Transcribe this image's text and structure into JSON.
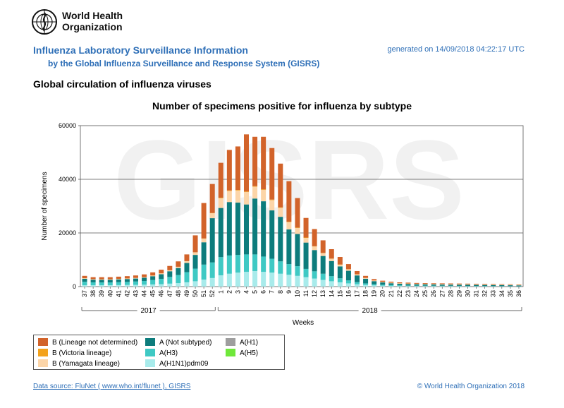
{
  "header": {
    "org_line1": "World Health",
    "org_line2": "Organization",
    "title": "Influenza Laboratory Surveillance Information",
    "subtitle": "by the Global Influenza Surveillance and Response System (GISRS)",
    "generated": "generated on 14/09/2018 04:22:17 UTC",
    "section": "Global circulation of influenza viruses"
  },
  "watermark": "GISRS",
  "footer": {
    "source": "Data source: FluNet ( www.who.int/flunet ), GISRS",
    "copyright": "© World Health Organization 2018"
  },
  "legend_items": [
    {
      "label": "B (Lineage not determined)",
      "color": "#d2632a"
    },
    {
      "label": "B (Victoria lineage)",
      "color": "#f3a21c"
    },
    {
      "label": "B (Yamagata lineage)",
      "color": "#fcd5a8"
    },
    {
      "label": "A (Not subtyped)",
      "color": "#0d7c7c"
    },
    {
      "label": "A(H3)",
      "color": "#3fc9c4"
    },
    {
      "label": "A(H1N1)pdm09",
      "color": "#a8ebeb"
    },
    {
      "label": "A(H1)",
      "color": "#9e9e9e"
    },
    {
      "label": "A(H5)",
      "color": "#6fe83a"
    }
  ],
  "chart_data": {
    "type": "bar",
    "stacked": true,
    "title": "Number of specimens positive for influenza by subtype",
    "xlabel": "Weeks",
    "ylabel": "Number of specimens",
    "ylim": [
      0,
      60000
    ],
    "yticks": [
      0,
      20000,
      40000,
      60000
    ],
    "grid": true,
    "legend_position": "bottom-left",
    "year_groups": [
      {
        "label": "2017",
        "weeks": "37-52"
      },
      {
        "label": "2018",
        "weeks": "1-36"
      }
    ],
    "categories": [
      "37",
      "38",
      "39",
      "40",
      "41",
      "42",
      "43",
      "44",
      "45",
      "46",
      "47",
      "48",
      "49",
      "50",
      "51",
      "52",
      "1",
      "2",
      "3",
      "4",
      "5",
      "6",
      "7",
      "8",
      "9",
      "10",
      "11",
      "12",
      "13",
      "14",
      "15",
      "16",
      "17",
      "18",
      "19",
      "20",
      "21",
      "22",
      "23",
      "24",
      "25",
      "26",
      "27",
      "28",
      "29",
      "30",
      "31",
      "32",
      "33",
      "34",
      "35",
      "36"
    ],
    "series": [
      {
        "name": "A(H1N1)pdm09",
        "color": "#a8ebeb",
        "values": [
          500,
          500,
          500,
          500,
          550,
          600,
          650,
          700,
          800,
          900,
          1100,
          1300,
          1600,
          2000,
          2600,
          3200,
          4200,
          4800,
          5200,
          5500,
          5800,
          5500,
          5200,
          4800,
          4400,
          4000,
          3500,
          3000,
          2500,
          2000,
          1600,
          1200,
          850,
          600,
          450,
          350,
          280,
          230,
          200,
          180,
          170,
          160,
          150,
          140,
          130,
          120,
          110,
          100,
          90,
          80,
          70,
          60
        ]
      },
      {
        "name": "A(H3)",
        "color": "#3fc9c4",
        "values": [
          1300,
          1100,
          1050,
          1050,
          1100,
          1150,
          1250,
          1400,
          1650,
          2000,
          2500,
          3000,
          3800,
          4700,
          5600,
          5800,
          6800,
          6800,
          6600,
          6500,
          6200,
          5700,
          5200,
          4600,
          4000,
          3600,
          3100,
          2700,
          2300,
          1900,
          1500,
          1100,
          800,
          600,
          450,
          350,
          300,
          250,
          220,
          200,
          190,
          180,
          170,
          160,
          150,
          140,
          130,
          120,
          110,
          100,
          90,
          80
        ]
      },
      {
        "name": "A (Not subtyped)",
        "color": "#0d7c7c",
        "values": [
          1100,
          950,
          950,
          950,
          1000,
          1050,
          1100,
          1200,
          1400,
          1700,
          2100,
          2600,
          3400,
          5100,
          8300,
          16500,
          18300,
          19900,
          19500,
          18600,
          20800,
          20600,
          18000,
          16600,
          12900,
          12000,
          9800,
          7900,
          6600,
          5600,
          4400,
          3600,
          2500,
          1700,
          1100,
          850,
          650,
          550,
          500,
          480,
          460,
          440,
          430,
          420,
          410,
          400,
          390,
          380,
          370,
          360,
          340,
          300
        ]
      },
      {
        "name": "A(H1)",
        "color": "#9e9e9e",
        "values": [
          50,
          50,
          50,
          50,
          50,
          50,
          50,
          50,
          50,
          50,
          50,
          50,
          50,
          50,
          50,
          50,
          50,
          50,
          50,
          50,
          50,
          50,
          50,
          50,
          50,
          50,
          50,
          50,
          50,
          50,
          50,
          50,
          50,
          50,
          50,
          50,
          50,
          50,
          50,
          50,
          50,
          50,
          50,
          50,
          50,
          50,
          50,
          50,
          50,
          50,
          50,
          50
        ]
      },
      {
        "name": "B (Yamagata lineage)",
        "color": "#fcd5a8",
        "values": [
          150,
          150,
          150,
          150,
          150,
          150,
          150,
          150,
          200,
          250,
          300,
          400,
          600,
          900,
          1300,
          1800,
          3600,
          4100,
          4500,
          4600,
          4400,
          4200,
          3800,
          3300,
          2700,
          2200,
          1700,
          1300,
          1000,
          800,
          600,
          450,
          350,
          250,
          200,
          150,
          150,
          150,
          150,
          120,
          120,
          120,
          120,
          120,
          120,
          120,
          120,
          100,
          100,
          100,
          100,
          100
        ]
      },
      {
        "name": "B (Victoria lineage)",
        "color": "#f3a21c",
        "values": [
          50,
          50,
          50,
          50,
          50,
          50,
          50,
          50,
          50,
          50,
          50,
          50,
          50,
          50,
          100,
          100,
          200,
          200,
          200,
          200,
          200,
          200,
          200,
          200,
          150,
          150,
          150,
          100,
          100,
          100,
          100,
          100,
          50,
          50,
          50,
          50,
          50,
          50,
          50,
          50,
          50,
          50,
          50,
          50,
          50,
          50,
          50,
          50,
          50,
          50,
          50,
          50
        ]
      },
      {
        "name": "B (Lineage not determined)",
        "color": "#d2632a",
        "values": [
          850,
          700,
          750,
          750,
          800,
          850,
          900,
          1000,
          1150,
          1350,
          1600,
          2000,
          2500,
          6300,
          13200,
          10800,
          13000,
          15100,
          16200,
          21300,
          18400,
          19600,
          19200,
          16300,
          15100,
          11000,
          7300,
          6400,
          4700,
          3500,
          2800,
          1900,
          1200,
          750,
          500,
          400,
          350,
          300,
          300,
          280,
          260,
          250,
          250,
          240,
          230,
          220,
          210,
          200,
          190,
          180,
          170,
          150
        ]
      }
    ]
  }
}
